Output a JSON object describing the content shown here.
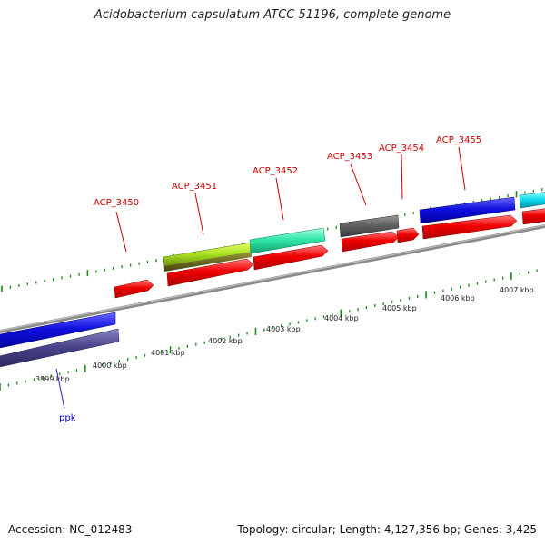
{
  "title": "Acidobacterium capsulatum ATCC 51196, complete genome",
  "footer": {
    "accession": "Accession: NC_012483",
    "summary": "Topology: circular; Length: 4,127,356 bp; Genes: 3,425"
  },
  "colors": {
    "backbone": "#888888",
    "tick": "#1a8a1a",
    "label_red": "#cc0000",
    "label_blue": "#0000cc"
  },
  "scale": {
    "unit": "kbp",
    "ticks": [
      "3999 kbp",
      "4000 kbp",
      "4001 kbp",
      "4002 kbp",
      "4003 kbp",
      "4004 kbp",
      "4005 kbp",
      "4006 kbp",
      "4007 kbp"
    ]
  },
  "genes": [
    {
      "label": "ppk",
      "color": "#0000cc"
    },
    {
      "label": "ACP_3450",
      "color": "#cc0000"
    },
    {
      "label": "ACP_3451",
      "color": "#cc0000"
    },
    {
      "label": "ACP_3452",
      "color": "#cc0000"
    },
    {
      "label": "ACP_3453",
      "color": "#cc0000"
    },
    {
      "label": "ACP_3454",
      "color": "#cc0000"
    },
    {
      "label": "ACP_3455",
      "color": "#cc0000"
    }
  ]
}
